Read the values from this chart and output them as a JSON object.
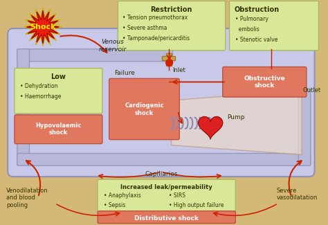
{
  "bg_color": "#d4b878",
  "circuit_bg": "#c8c8e8",
  "pipe_color": "#b8b8d8",
  "pipe_edge": "#9898b8",
  "box_green": "#d8e898",
  "box_green_edge": "#a8b860",
  "box_red": "#e07860",
  "box_red_edge": "#c05040",
  "box_yellow": "#f0e890",
  "box_yellow_edge": "#c8c060",
  "shock_fill": "#e82010",
  "shock_star_fill": "#f8e840",
  "text_dark": "#333300",
  "text_white": "#ffffff",
  "arrow_color": "#cc2200",
  "heart_color": "#dd2020",
  "restriction_title": "Restriction",
  "restriction_items": [
    "• Tension pneumothorax",
    "• Severe asthma",
    "• Tamponade/pericarditis"
  ],
  "obstruction_title": "Obstruction",
  "obstruction_items": [
    "• Pulmonary",
    "  embolis",
    "• Stenotic valve"
  ],
  "obstructive_shock": "Obstructive\nshock",
  "low_title": "Low",
  "low_items": [
    "• Dehydration",
    "• Haemorrhage"
  ],
  "hypovolaemic": "Hypovolaemic\nshock",
  "failure_title": "Failure",
  "cardiogenic": "Cardiogenic\nshock",
  "increased_leak_title": "Increased leak/permeability",
  "increased_leak_items_left": [
    "• Anaphylaxis",
    "• Sepsis"
  ],
  "increased_leak_items_right": [
    "• SIRS",
    "• High output failure"
  ],
  "distributive": "Distributive shock",
  "venous_reservoir": "Venous\nreservoir",
  "inlet_label": "Inlet",
  "outlet_label": "Outlet",
  "pump_label": "Pump",
  "capillaries_label": "Capillaries",
  "venodilation_label": "Venodilatation\nand blood\npooling",
  "severe_vasodilation_label": "Severe\nvasodilatation",
  "shock_label": "Shock"
}
